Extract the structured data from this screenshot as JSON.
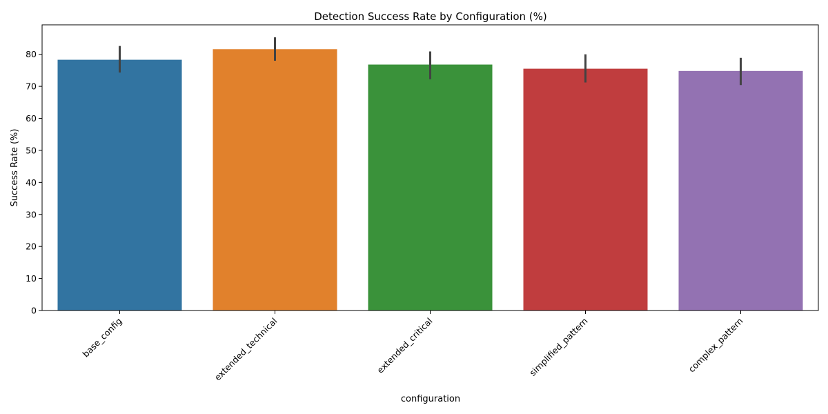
{
  "chart_data": {
    "type": "bar",
    "title": "Detection Success Rate by Configuration (%)",
    "xlabel": "configuration",
    "ylabel": "Success Rate (%)",
    "categories": [
      "base_config",
      "extended_technical",
      "extended_critical",
      "simplified_pattern",
      "complex_pattern"
    ],
    "values": [
      78.3,
      81.6,
      76.8,
      75.5,
      74.8
    ],
    "error_low": [
      74.3,
      78.0,
      72.2,
      71.2,
      70.4
    ],
    "error_high": [
      82.6,
      85.3,
      80.9,
      80.0,
      78.9
    ],
    "colors": [
      "#3274a1",
      "#e1812c",
      "#3a923a",
      "#c03d3e",
      "#9372b2"
    ],
    "error_color": "#424242",
    "ylim": [
      0,
      89.2
    ],
    "yticks": [
      0,
      10,
      20,
      30,
      40,
      50,
      60,
      70,
      80
    ],
    "grid": false,
    "xtick_rotation": 45
  }
}
